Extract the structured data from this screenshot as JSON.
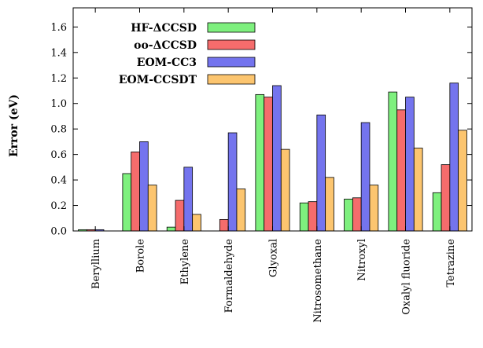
{
  "chart_data": {
    "type": "bar",
    "ylabel": "Error (eV)",
    "xlabel": "",
    "ylim": [
      0,
      1.75
    ],
    "yticks": [
      0.0,
      0.2,
      0.4,
      0.6,
      0.8,
      1.0,
      1.2,
      1.4,
      1.6
    ],
    "ytick_labels": [
      "0.0",
      "0.2",
      "0.4",
      "0.6",
      "0.8",
      "1.0",
      "1.2",
      "1.4",
      "1.6"
    ],
    "legend_position": "top-left",
    "grid": false,
    "categories": [
      "Beryllium",
      "Borole",
      "Ethylene",
      "Formaldehyde",
      "Glyoxal",
      "Nitrosomethane",
      "Nitroxyl",
      "Oxalyl fluoride",
      "Tetrazine"
    ],
    "series": [
      {
        "name": "HF-ΔCCSD",
        "color": "#7ef07e",
        "values": [
          0.01,
          0.45,
          0.03,
          null,
          1.07,
          0.22,
          0.25,
          1.09,
          0.3
        ]
      },
      {
        "name": "oo-ΔCCSD",
        "color": "#f56c6c",
        "values": [
          0.01,
          0.62,
          0.24,
          0.09,
          1.05,
          0.23,
          0.26,
          0.95,
          0.52
        ]
      },
      {
        "name": "EOM-CC3",
        "color": "#7474ee",
        "values": [
          0.01,
          0.7,
          0.5,
          0.77,
          1.14,
          0.91,
          0.85,
          1.05,
          1.16
        ]
      },
      {
        "name": "EOM-CCSDT",
        "color": "#fcc56f",
        "values": [
          null,
          0.36,
          0.13,
          0.33,
          0.64,
          0.42,
          0.36,
          0.65,
          0.79
        ]
      }
    ]
  }
}
